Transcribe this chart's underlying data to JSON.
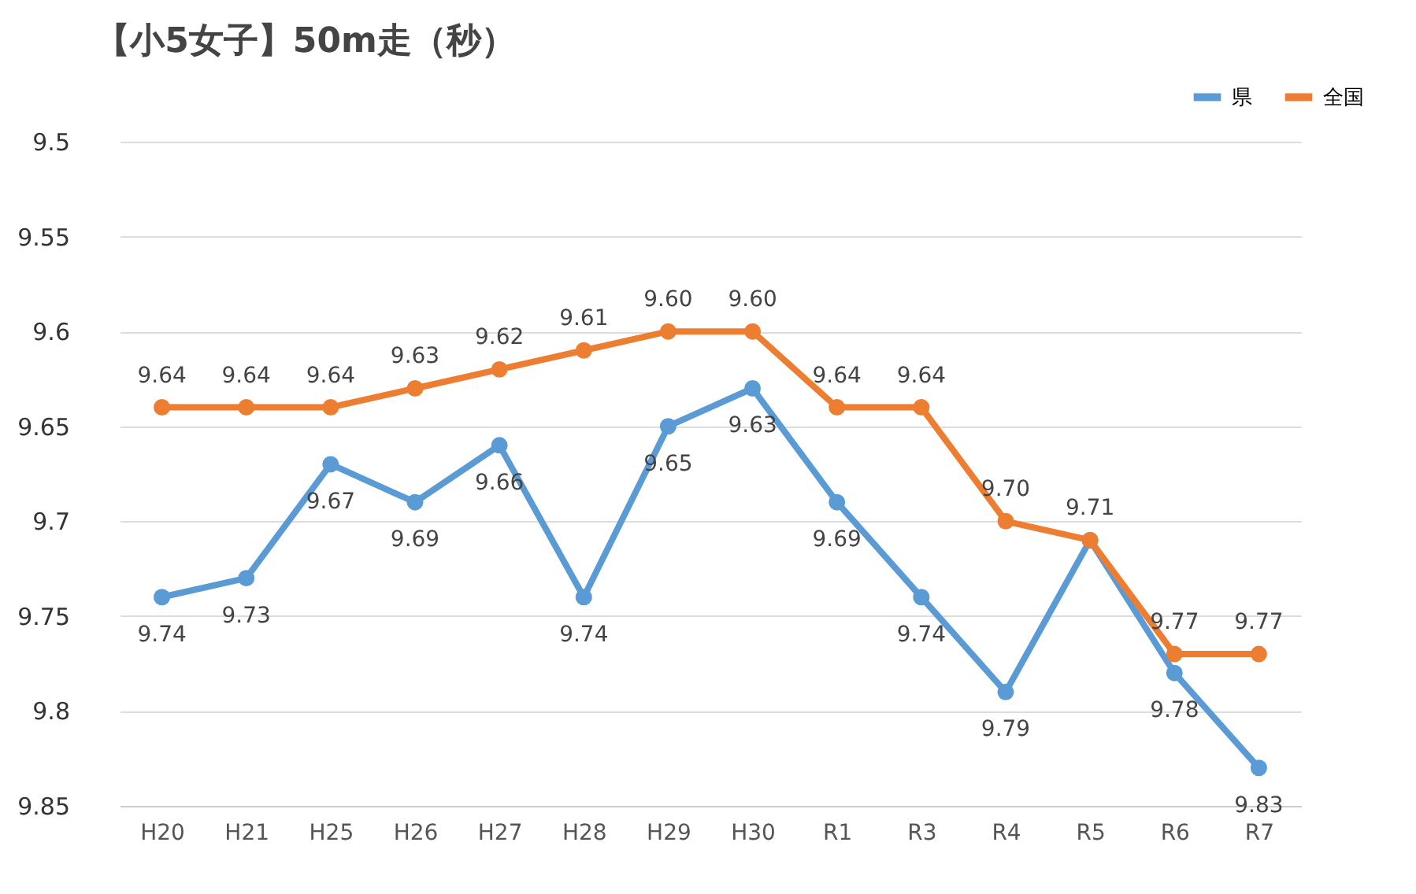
{
  "chart_data": {
    "type": "line",
    "title": "【小5女子】50m走（秒）",
    "categories": [
      "H20",
      "H21",
      "H25",
      "H26",
      "H27",
      "H28",
      "H29",
      "H30",
      "R1",
      "R3",
      "R4",
      "R5",
      "R6",
      "R7"
    ],
    "series": [
      {
        "name": "県",
        "color": "#5b9bd5",
        "values": [
          9.74,
          9.73,
          9.67,
          9.69,
          9.66,
          9.74,
          9.65,
          9.63,
          9.69,
          9.74,
          9.79,
          9.71,
          9.78,
          9.83
        ],
        "value_labels": [
          "9.74",
          "9.73",
          "9.67",
          "9.69",
          "9.66",
          "9.74",
          "9.65",
          "9.63",
          "9.69",
          "9.74",
          "9.79",
          null,
          "9.78",
          "9.83"
        ]
      },
      {
        "name": "全国",
        "color": "#ed7d31",
        "values": [
          9.64,
          9.64,
          9.64,
          9.63,
          9.62,
          9.61,
          9.6,
          9.6,
          9.64,
          9.64,
          9.7,
          9.71,
          9.77,
          9.77
        ],
        "value_labels": [
          "9.64",
          "9.64",
          "9.64",
          "9.63",
          "9.62",
          "9.61",
          "9.60",
          "9.60",
          "9.64",
          "9.64",
          "9.70",
          "9.71",
          "9.77",
          "9.77"
        ]
      }
    ],
    "ylim": [
      9.85,
      9.5
    ],
    "yticks": [
      9.5,
      9.55,
      9.6,
      9.65,
      9.7,
      9.75,
      9.8,
      9.85
    ],
    "grid": "y",
    "legend": "top right",
    "marker": "circle",
    "line_style": "solid"
  }
}
